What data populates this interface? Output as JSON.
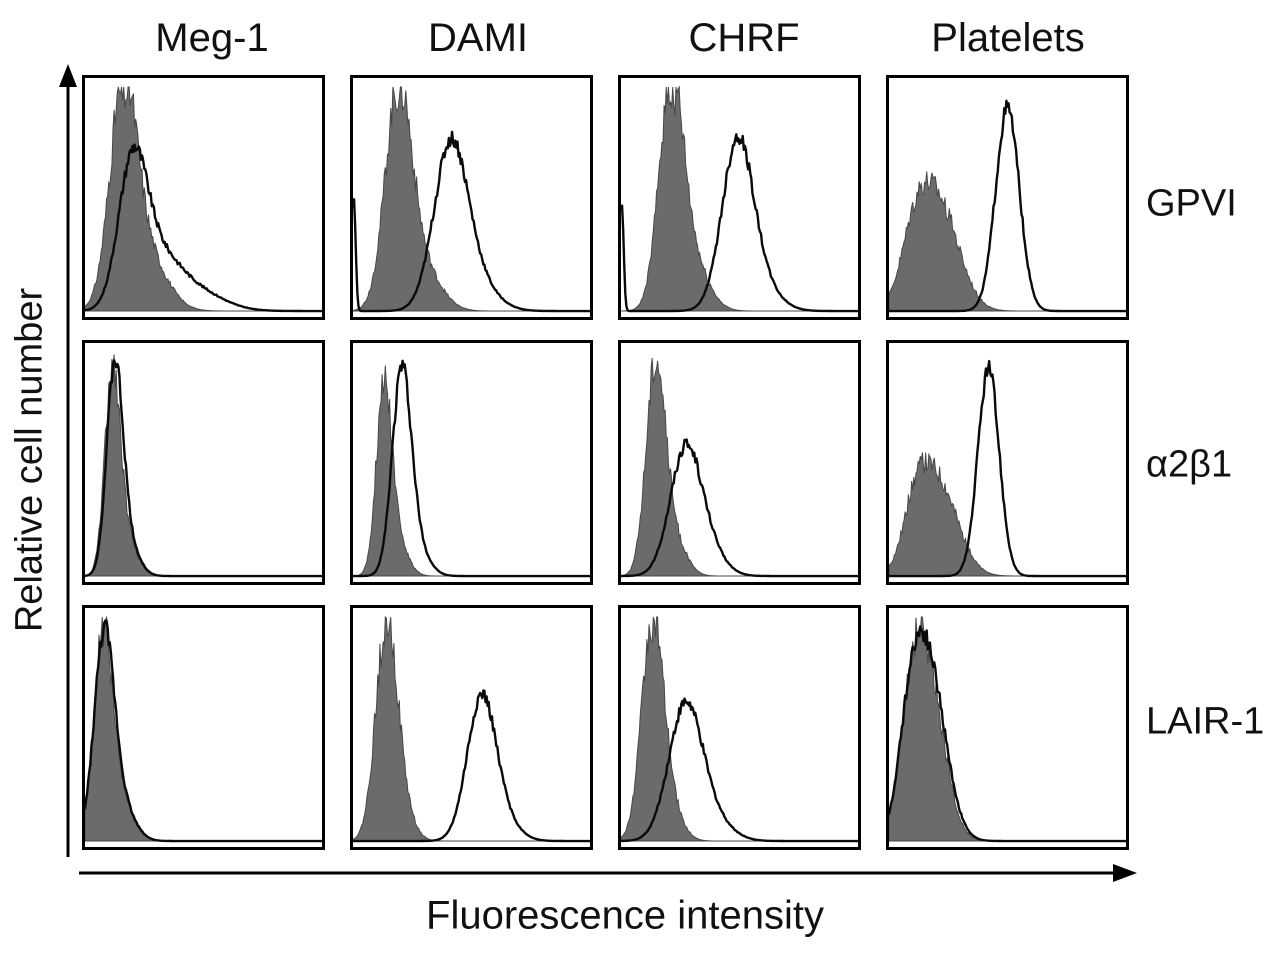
{
  "figure": {
    "col_titles": [
      "Meg-1",
      "DAMI",
      "CHRF",
      "Platelets"
    ],
    "row_labels": [
      "GPVI",
      "α2β1",
      "LAIR-1"
    ],
    "xlabel": "Fluorescence intensity",
    "ylabel": "Relative cell number"
  },
  "chart_data": {
    "type": "area",
    "variant": "flow-cytometry histogram overlays, grid of 4 cell types (columns) x 3 surface markers (rows)",
    "columns": [
      "Meg-1",
      "DAMI",
      "CHRF",
      "Platelets"
    ],
    "rows": [
      "GPVI",
      "α2β1",
      "LAIR-1"
    ],
    "xlabel": "Fluorescence intensity",
    "ylabel": "Relative cell number",
    "axes": {
      "ticks": "none",
      "style": "arrow axes with unlabeled scale"
    },
    "series_encoding": {
      "control": "filled dark-gray histogram (background control)",
      "stain": "open black-outline histogram (specific staining)"
    },
    "curve_units": "c and w are fractions of the x-axis range, h is peak height as fraction of panel height; each histogram is a sum of gaussian components",
    "panels": [
      {
        "marker": "GPVI",
        "cell": "Meg-1",
        "control": [
          {
            "c": 0.16,
            "w": 0.055,
            "h": 0.9
          },
          {
            "c": 0.24,
            "w": 0.09,
            "h": 0.3
          }
        ],
        "stain": [
          {
            "c": 0.2,
            "w": 0.06,
            "h": 0.62
          },
          {
            "c": 0.3,
            "w": 0.09,
            "h": 0.22
          },
          {
            "c": 0.45,
            "w": 0.12,
            "h": 0.1
          }
        ]
      },
      {
        "marker": "GPVI",
        "cell": "DAMI",
        "control": [
          {
            "c": 0.19,
            "w": 0.055,
            "h": 0.95
          },
          {
            "c": 0.28,
            "w": 0.08,
            "h": 0.22
          }
        ],
        "stain": [
          {
            "c": 0.003,
            "w": 0.008,
            "h": 0.52
          },
          {
            "c": 0.41,
            "w": 0.07,
            "h": 0.7
          },
          {
            "c": 0.5,
            "w": 0.09,
            "h": 0.15
          }
        ]
      },
      {
        "marker": "GPVI",
        "cell": "CHRF",
        "control": [
          {
            "c": 0.21,
            "w": 0.05,
            "h": 0.97
          },
          {
            "c": 0.29,
            "w": 0.07,
            "h": 0.25
          }
        ],
        "stain": [
          {
            "c": 0.003,
            "w": 0.008,
            "h": 0.5
          },
          {
            "c": 0.49,
            "w": 0.065,
            "h": 0.74
          },
          {
            "c": 0.58,
            "w": 0.08,
            "h": 0.12
          }
        ]
      },
      {
        "marker": "GPVI",
        "cell": "Platelets",
        "control": [
          {
            "c": 0.21,
            "w": 0.085,
            "h": 0.48
          },
          {
            "c": 0.11,
            "w": 0.06,
            "h": 0.28
          }
        ],
        "stain": [
          {
            "c": 0.5,
            "w": 0.05,
            "h": 0.93
          }
        ]
      },
      {
        "marker": "α2β1",
        "cell": "Meg-1",
        "control": [
          {
            "c": 0.115,
            "w": 0.032,
            "h": 0.9
          },
          {
            "c": 0.17,
            "w": 0.045,
            "h": 0.18
          }
        ],
        "stain": [
          {
            "c": 0.125,
            "w": 0.034,
            "h": 0.92
          },
          {
            "c": 0.18,
            "w": 0.045,
            "h": 0.15
          }
        ]
      },
      {
        "marker": "α2β1",
        "cell": "DAMI",
        "control": [
          {
            "c": 0.13,
            "w": 0.032,
            "h": 0.82
          },
          {
            "c": 0.18,
            "w": 0.045,
            "h": 0.18
          }
        ],
        "stain": [
          {
            "c": 0.205,
            "w": 0.04,
            "h": 0.92
          },
          {
            "c": 0.27,
            "w": 0.05,
            "h": 0.12
          }
        ]
      },
      {
        "marker": "α2β1",
        "cell": "CHRF",
        "control": [
          {
            "c": 0.145,
            "w": 0.04,
            "h": 0.92
          },
          {
            "c": 0.21,
            "w": 0.055,
            "h": 0.2
          }
        ],
        "stain": [
          {
            "c": 0.27,
            "w": 0.065,
            "h": 0.55
          },
          {
            "c": 0.36,
            "w": 0.07,
            "h": 0.12
          }
        ]
      },
      {
        "marker": "α2β1",
        "cell": "Platelets",
        "control": [
          {
            "c": 0.2,
            "w": 0.085,
            "h": 0.45
          },
          {
            "c": 0.11,
            "w": 0.05,
            "h": 0.2
          }
        ],
        "stain": [
          {
            "c": 0.42,
            "w": 0.045,
            "h": 0.95
          }
        ]
      },
      {
        "marker": "LAIR-1",
        "cell": "Meg-1",
        "control": [
          {
            "c": 0.075,
            "w": 0.04,
            "h": 0.88
          },
          {
            "c": 0.14,
            "w": 0.055,
            "h": 0.2
          }
        ],
        "stain": [
          {
            "c": 0.08,
            "w": 0.042,
            "h": 0.9
          },
          {
            "c": 0.15,
            "w": 0.055,
            "h": 0.17
          }
        ]
      },
      {
        "marker": "LAIR-1",
        "cell": "DAMI",
        "control": [
          {
            "c": 0.14,
            "w": 0.045,
            "h": 0.95
          },
          {
            "c": 0.2,
            "w": 0.05,
            "h": 0.15
          }
        ],
        "stain": [
          {
            "c": 0.54,
            "w": 0.06,
            "h": 0.62
          },
          {
            "c": 0.62,
            "w": 0.07,
            "h": 0.1
          }
        ]
      },
      {
        "marker": "LAIR-1",
        "cell": "CHRF",
        "control": [
          {
            "c": 0.13,
            "w": 0.045,
            "h": 0.92
          },
          {
            "c": 0.19,
            "w": 0.055,
            "h": 0.2
          }
        ],
        "stain": [
          {
            "c": 0.27,
            "w": 0.07,
            "h": 0.6
          },
          {
            "c": 0.38,
            "w": 0.08,
            "h": 0.1
          }
        ]
      },
      {
        "marker": "LAIR-1",
        "cell": "Platelets",
        "control": [
          {
            "c": 0.16,
            "w": 0.07,
            "h": 0.78
          },
          {
            "c": 0.09,
            "w": 0.05,
            "h": 0.35
          }
        ],
        "stain": [
          {
            "c": 0.165,
            "w": 0.072,
            "h": 0.8
          },
          {
            "c": 0.09,
            "w": 0.05,
            "h": 0.35
          }
        ]
      }
    ]
  }
}
